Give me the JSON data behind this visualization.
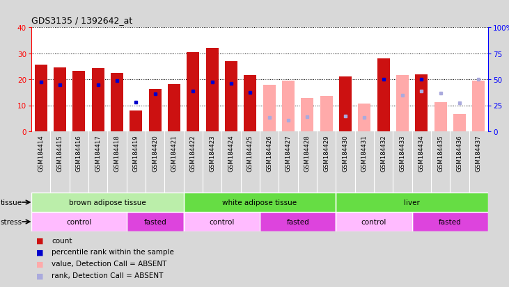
{
  "title": "GDS3135 / 1392642_at",
  "samples": [
    "GSM184414",
    "GSM184415",
    "GSM184416",
    "GSM184417",
    "GSM184418",
    "GSM184419",
    "GSM184420",
    "GSM184421",
    "GSM184422",
    "GSM184423",
    "GSM184424",
    "GSM184425",
    "GSM184426",
    "GSM184427",
    "GSM184428",
    "GSM184429",
    "GSM184430",
    "GSM184431",
    "GSM184432",
    "GSM184433",
    "GSM184434",
    "GSM184435",
    "GSM184436",
    "GSM184437"
  ],
  "bar_values": [
    25.5,
    24.5,
    23.2,
    24.4,
    22.5,
    8.0,
    16.2,
    18.2,
    30.5,
    32.0,
    27.0,
    21.5,
    18.0,
    19.5,
    12.8,
    13.5,
    21.0,
    10.8,
    28.0,
    21.5,
    22.0,
    11.2,
    6.8,
    19.5
  ],
  "absent": [
    false,
    false,
    false,
    false,
    false,
    false,
    false,
    false,
    false,
    false,
    false,
    false,
    true,
    true,
    true,
    true,
    false,
    true,
    false,
    true,
    false,
    true,
    true,
    true
  ],
  "blue_dot_values": [
    19.0,
    18.0,
    null,
    18.0,
    19.5,
    11.2,
    14.5,
    null,
    15.5,
    19.0,
    18.5,
    15.0,
    null,
    null,
    null,
    null,
    null,
    null,
    20.0,
    null,
    20.0,
    null,
    null,
    null
  ],
  "rank_absent_values": [
    null,
    null,
    null,
    null,
    null,
    null,
    null,
    null,
    null,
    null,
    null,
    null,
    13.5,
    11.0,
    14.0,
    null,
    14.5,
    13.5,
    null,
    35.0,
    38.5,
    37.0,
    27.5,
    50.0
  ],
  "bar_color_present": "#cc1111",
  "bar_color_absent": "#ffaaaa",
  "blue_dot_color_present": "#0000cc",
  "blue_dot_color_absent": "#aaaadd",
  "background_color": "#d8d8d8",
  "plot_bg": "#ffffff",
  "xticklabel_bg": "#c8c8c8",
  "ylim_left": [
    0,
    40
  ],
  "ylim_right": [
    0,
    100
  ],
  "tissue_groups": [
    {
      "label": "brown adipose tissue",
      "start": 0,
      "end": 8,
      "color": "#bbeeaa"
    },
    {
      "label": "white adipose tissue",
      "start": 8,
      "end": 16,
      "color": "#66dd44"
    },
    {
      "label": "liver",
      "start": 16,
      "end": 24,
      "color": "#66dd44"
    }
  ],
  "stress_groups": [
    {
      "label": "control",
      "start": 0,
      "end": 5,
      "color": "#ffbbff"
    },
    {
      "label": "fasted",
      "start": 5,
      "end": 8,
      "color": "#dd44dd"
    },
    {
      "label": "control",
      "start": 8,
      "end": 12,
      "color": "#ffbbff"
    },
    {
      "label": "fasted",
      "start": 12,
      "end": 16,
      "color": "#dd44dd"
    },
    {
      "label": "control",
      "start": 16,
      "end": 20,
      "color": "#ffbbff"
    },
    {
      "label": "fasted",
      "start": 20,
      "end": 24,
      "color": "#dd44dd"
    }
  ]
}
